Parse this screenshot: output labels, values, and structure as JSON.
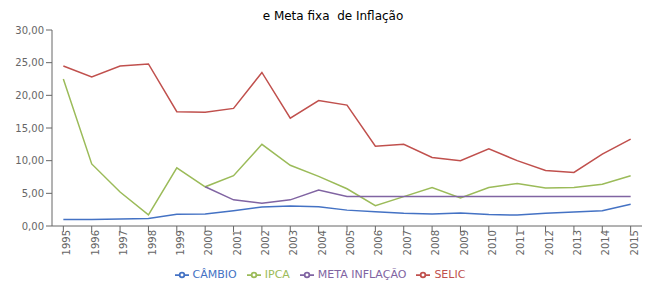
{
  "chart_data": {
    "type": "line",
    "title": "e Meta fixa  de Inflação",
    "x": [
      1995,
      1996,
      1997,
      1998,
      1999,
      2000,
      2001,
      2002,
      2003,
      2004,
      2005,
      2006,
      2007,
      2008,
      2009,
      2010,
      2011,
      2012,
      2013,
      2014,
      2015
    ],
    "series": [
      {
        "name": "CÂMBIO",
        "color": "#4472C4",
        "values": [
          1.0,
          1.0,
          1.08,
          1.16,
          1.79,
          1.83,
          2.35,
          2.92,
          3.07,
          2.93,
          2.43,
          2.18,
          1.95,
          1.83,
          2.0,
          1.76,
          1.67,
          1.95,
          2.16,
          2.35,
          3.33
        ]
      },
      {
        "name": "SELIC",
        "color": "#C0504D",
        "values": [
          24.5,
          22.8,
          24.5,
          24.8,
          17.5,
          17.4,
          18.0,
          23.5,
          16.5,
          19.2,
          18.5,
          12.2,
          12.5,
          10.5,
          10.0,
          11.8,
          10.0,
          8.5,
          8.2,
          11.0,
          13.3
        ]
      },
      {
        "name": "IPCA",
        "color": "#9BBB59",
        "values": [
          22.5,
          9.5,
          5.2,
          1.7,
          8.9,
          6.0,
          7.7,
          12.5,
          9.3,
          7.6,
          5.7,
          3.1,
          4.5,
          5.9,
          4.3,
          5.9,
          6.5,
          5.8,
          5.9,
          6.4,
          7.7
        ]
      },
      {
        "name": "META INFLAÇÃO",
        "color": "#8064A2",
        "values": [
          null,
          null,
          null,
          null,
          null,
          6.0,
          4.0,
          3.5,
          4.0,
          5.5,
          4.5,
          4.5,
          4.5,
          4.5,
          4.5,
          4.5,
          4.5,
          4.5,
          4.5,
          4.5,
          4.5
        ]
      }
    ],
    "xlim": [
      1994.6,
      2015.4
    ],
    "xticks": [
      1995,
      1996,
      1997,
      1998,
      1999,
      2000,
      2001,
      2002,
      2003,
      2004,
      2005,
      2006,
      2007,
      2008,
      2009,
      2010,
      2011,
      2012,
      2013,
      2014,
      2015
    ],
    "ylim": [
      0,
      30
    ],
    "yticks": [
      {
        "value": 0,
        "label": "0,00"
      },
      {
        "value": 5,
        "label": "5,00"
      },
      {
        "value": 10,
        "label": "10,00"
      },
      {
        "value": 15,
        "label": "15,00"
      },
      {
        "value": 20,
        "label": "20,00"
      },
      {
        "value": 25,
        "label": "25,00"
      },
      {
        "value": 30,
        "label": "30,00"
      }
    ],
    "grid": false,
    "legend": "bottom"
  }
}
